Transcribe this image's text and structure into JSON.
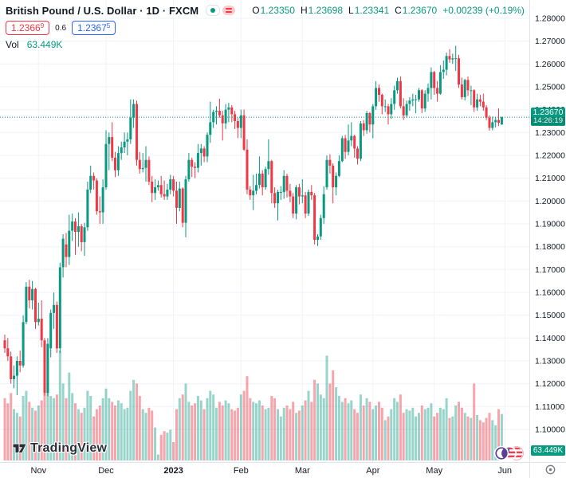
{
  "header": {
    "title": "British Pound / U.S. Dollar · 1D · FXCM",
    "ohlc": {
      "o_label": "O",
      "o": "1.23350",
      "h_label": "H",
      "h": "1.23698",
      "l_label": "L",
      "l": "1.23341",
      "c_label": "C",
      "c": "1.23670",
      "change": "+0.00239 (+0.19%)"
    },
    "bid": {
      "main": "1.2366",
      "sup": "9"
    },
    "spread": "0.6",
    "ask": {
      "main": "1.2367",
      "sup": "5"
    },
    "vol_label": "Vol",
    "vol_value": "63.449K"
  },
  "price_label": {
    "price": "1.23670",
    "time": "14:26:19"
  },
  "volume_label": "63.449K",
  "watermark": "TradingView",
  "chart_data": {
    "type": "candlestick",
    "title": "British Pound / U.S. Dollar, 1D, FXCM",
    "symbol": "GBP/USD",
    "timeframe": "1D",
    "exchange": "FXCM",
    "current_bar": {
      "open": 1.2335,
      "high": 1.23698,
      "low": 1.23341,
      "close": 1.2367,
      "change": 0.00239,
      "change_pct": 0.19,
      "volume_k": 63.449,
      "countdown": "14:26:19"
    },
    "quote": {
      "bid": 1.23669,
      "ask": 1.23675,
      "spread": 0.6
    },
    "y_axis": {
      "min": 1.1,
      "max": 1.28,
      "tick_step": 0.01,
      "ticks": [
        1.28,
        1.27,
        1.26,
        1.25,
        1.24,
        1.23,
        1.22,
        1.21,
        1.2,
        1.19,
        1.18,
        1.17,
        1.16,
        1.15,
        1.14,
        1.13,
        1.12,
        1.11,
        1.1
      ]
    },
    "x_axis": {
      "labels": [
        "Nov",
        "Dec",
        "2023",
        "Feb",
        "Mar",
        "Apr",
        "May",
        "Jun"
      ],
      "month_start_indices": [
        11,
        33,
        55,
        77,
        97,
        120,
        140,
        163
      ],
      "bold_label": "2023",
      "grid": true
    },
    "last_price": 1.2367,
    "candles": [
      [
        1.139,
        1.1415,
        1.1335,
        1.1355
      ],
      [
        1.1355,
        1.14,
        1.13,
        1.132
      ],
      [
        1.132,
        1.134,
        1.12,
        1.122
      ],
      [
        1.122,
        1.128,
        1.118,
        1.1235
      ],
      [
        1.1235,
        1.132,
        1.115,
        1.13
      ],
      [
        1.13,
        1.1345,
        1.125,
        1.128
      ],
      [
        1.128,
        1.15,
        1.127,
        1.147
      ],
      [
        1.147,
        1.1645,
        1.146,
        1.1625
      ],
      [
        1.1625,
        1.1655,
        1.153,
        1.1565
      ],
      [
        1.1565,
        1.165,
        1.1525,
        1.1615
      ],
      [
        1.1615,
        1.162,
        1.144,
        1.147
      ],
      [
        1.147,
        1.1555,
        1.1455,
        1.1485
      ],
      [
        1.1485,
        1.1565,
        1.136,
        1.139
      ],
      [
        1.139,
        1.14,
        1.1147,
        1.116
      ],
      [
        1.116,
        1.14,
        1.1145,
        1.1375
      ],
      [
        1.1355,
        1.1525,
        1.1315,
        1.151
      ],
      [
        1.151,
        1.16,
        1.144,
        1.1545
      ],
      [
        1.1545,
        1.156,
        1.1335,
        1.1355
      ],
      [
        1.1355,
        1.173,
        1.1335,
        1.171
      ],
      [
        1.171,
        1.1855,
        1.1665,
        1.1835
      ],
      [
        1.181,
        1.186,
        1.171,
        1.1755
      ],
      [
        1.1755,
        1.194,
        1.172,
        1.187
      ],
      [
        1.187,
        1.1945,
        1.1825,
        1.191
      ],
      [
        1.191,
        1.1925,
        1.1765,
        1.1865
      ],
      [
        1.1865,
        1.195,
        1.18,
        1.189
      ],
      [
        1.189,
        1.19,
        1.178,
        1.182
      ],
      [
        1.182,
        1.1905,
        1.176,
        1.1885
      ],
      [
        1.1885,
        1.2085,
        1.187,
        1.205
      ],
      [
        1.205,
        1.2155,
        1.2035,
        1.211
      ],
      [
        1.211,
        1.2125,
        1.205,
        1.209
      ],
      [
        1.209,
        1.21,
        1.194,
        1.1955
      ],
      [
        1.1955,
        1.202,
        1.19,
        1.195
      ],
      [
        1.195,
        1.2095,
        1.19,
        1.206
      ],
      [
        1.206,
        1.231,
        1.205,
        1.225
      ],
      [
        1.225,
        1.23,
        1.2135,
        1.228
      ],
      [
        1.228,
        1.2345,
        1.2175,
        1.219
      ],
      [
        1.219,
        1.2215,
        1.2105,
        1.2135
      ],
      [
        1.2135,
        1.224,
        1.211,
        1.221
      ],
      [
        1.221,
        1.226,
        1.218,
        1.2235
      ],
      [
        1.2235,
        1.23,
        1.221,
        1.226
      ],
      [
        1.226,
        1.23,
        1.22,
        1.227
      ],
      [
        1.227,
        1.2445,
        1.225,
        1.2365
      ],
      [
        1.2365,
        1.2445,
        1.232,
        1.2425
      ],
      [
        1.2425,
        1.244,
        1.2155,
        1.218
      ],
      [
        1.218,
        1.2215,
        1.212,
        1.214
      ],
      [
        1.214,
        1.221,
        1.2125,
        1.2145
      ],
      [
        1.2145,
        1.224,
        1.2085,
        1.218
      ],
      [
        1.218,
        1.2195,
        1.207,
        1.2085
      ],
      [
        1.2085,
        1.211,
        1.1995,
        1.2035
      ],
      [
        1.2035,
        1.2095,
        1.2005,
        1.206
      ],
      [
        1.206,
        1.209,
        1.2045,
        1.207
      ],
      [
        1.207,
        1.211,
        1.2015,
        1.203
      ],
      [
        1.203,
        1.209,
        1.2005,
        1.202
      ],
      [
        1.202,
        1.2075,
        1.2005,
        1.205
      ],
      [
        1.205,
        1.2115,
        1.203,
        1.2095
      ],
      [
        1.2095,
        1.211,
        1.202,
        1.2045
      ],
      [
        1.2045,
        1.2085,
        1.19,
        1.197
      ],
      [
        1.197,
        1.2085,
        1.1955,
        1.2055
      ],
      [
        1.2055,
        1.206,
        1.1885,
        1.1905
      ],
      [
        1.1905,
        1.211,
        1.1841,
        1.2095
      ],
      [
        1.2095,
        1.221,
        1.2085,
        1.218
      ],
      [
        1.218,
        1.219,
        1.2105,
        1.215
      ],
      [
        1.215,
        1.217,
        1.21,
        1.2145
      ],
      [
        1.2145,
        1.225,
        1.2125,
        1.221
      ],
      [
        1.221,
        1.225,
        1.2155,
        1.223
      ],
      [
        1.223,
        1.224,
        1.217,
        1.2195
      ],
      [
        1.2195,
        1.23,
        1.217,
        1.229
      ],
      [
        1.229,
        1.2435,
        1.2255,
        1.2345
      ],
      [
        1.2345,
        1.24,
        1.232,
        1.239
      ],
      [
        1.239,
        1.2415,
        1.2335,
        1.2395
      ],
      [
        1.2395,
        1.2448,
        1.2365,
        1.2375
      ],
      [
        1.2375,
        1.2395,
        1.2265,
        1.234
      ],
      [
        1.234,
        1.2425,
        1.2315,
        1.24
      ],
      [
        1.24,
        1.243,
        1.2345,
        1.241
      ],
      [
        1.241,
        1.242,
        1.2345,
        1.238
      ],
      [
        1.238,
        1.2395,
        1.2315,
        1.235
      ],
      [
        1.235,
        1.2365,
        1.2275,
        1.232
      ],
      [
        1.232,
        1.24,
        1.2275,
        1.2375
      ],
      [
        1.2375,
        1.2401,
        1.222,
        1.2225
      ],
      [
        1.2225,
        1.227,
        1.203,
        1.205
      ],
      [
        1.205,
        1.2065,
        1.2005,
        1.2025
      ],
      [
        1.2025,
        1.2115,
        1.196,
        1.2045
      ],
      [
        1.2045,
        1.212,
        1.203,
        1.207
      ],
      [
        1.207,
        1.2195,
        1.2055,
        1.212
      ],
      [
        1.212,
        1.2135,
        1.2025,
        1.206
      ],
      [
        1.206,
        1.215,
        1.205,
        1.214
      ],
      [
        1.214,
        1.227,
        1.2115,
        1.2175
      ],
      [
        1.2175,
        1.218,
        1.199,
        1.2035
      ],
      [
        1.2035,
        1.206,
        1.197,
        1.199
      ],
      [
        1.199,
        1.205,
        1.1915,
        1.204
      ],
      [
        1.204,
        1.2065,
        1.2005,
        1.204
      ],
      [
        1.204,
        1.2135,
        1.201,
        1.211
      ],
      [
        1.211,
        1.212,
        1.2015,
        1.2045
      ],
      [
        1.2045,
        1.2075,
        1.1995,
        1.202
      ],
      [
        1.202,
        1.2035,
        1.1925,
        1.1945
      ],
      [
        1.1945,
        1.207,
        1.192,
        1.206
      ],
      [
        1.206,
        1.2075,
        1.1985,
        1.202
      ],
      [
        1.202,
        1.2095,
        1.199,
        1.2025
      ],
      [
        1.2025,
        1.204,
        1.1925,
        1.1945
      ],
      [
        1.1945,
        1.205,
        1.1935,
        1.204
      ],
      [
        1.204,
        1.207,
        1.2005,
        1.2025
      ],
      [
        1.2025,
        1.2035,
        1.181,
        1.183
      ],
      [
        1.183,
        1.1855,
        1.1803,
        1.1845
      ],
      [
        1.1845,
        1.194,
        1.183,
        1.1925
      ],
      [
        1.1925,
        1.2065,
        1.19,
        1.203
      ],
      [
        1.206,
        1.22,
        1.205,
        1.218
      ],
      [
        1.218,
        1.2205,
        1.212,
        1.2155
      ],
      [
        1.2155,
        1.2165,
        1.199,
        1.206
      ],
      [
        1.206,
        1.2125,
        1.2025,
        1.211
      ],
      [
        1.211,
        1.22,
        1.2105,
        1.2175
      ],
      [
        1.2175,
        1.2285,
        1.217,
        1.2275
      ],
      [
        1.2275,
        1.229,
        1.2185,
        1.2215
      ],
      [
        1.2215,
        1.2335,
        1.22,
        1.2265
      ],
      [
        1.2265,
        1.2345,
        1.224,
        1.2285
      ],
      [
        1.2285,
        1.229,
        1.219,
        1.223
      ],
      [
        1.223,
        1.224,
        1.216,
        1.2185
      ],
      [
        1.2185,
        1.235,
        1.2175,
        1.234
      ],
      [
        1.234,
        1.2355,
        1.2285,
        1.231
      ],
      [
        1.231,
        1.2395,
        1.2295,
        1.2385
      ],
      [
        1.2385,
        1.239,
        1.23,
        1.2335
      ],
      [
        1.2335,
        1.2425,
        1.2275,
        1.2415
      ],
      [
        1.2415,
        1.2525,
        1.24,
        1.2495
      ],
      [
        1.2495,
        1.251,
        1.2435,
        1.2465
      ],
      [
        1.2465,
        1.247,
        1.238,
        1.2415
      ],
      [
        1.2415,
        1.2445,
        1.239,
        1.2415
      ],
      [
        1.2415,
        1.2425,
        1.2335,
        1.238
      ],
      [
        1.238,
        1.245,
        1.236,
        1.2425
      ],
      [
        1.2425,
        1.2505,
        1.24,
        1.2485
      ],
      [
        1.2485,
        1.254,
        1.247,
        1.2525
      ],
      [
        1.2525,
        1.2546,
        1.2405,
        1.2415
      ],
      [
        1.2415,
        1.245,
        1.2355,
        1.2375
      ],
      [
        1.2375,
        1.244,
        1.2365,
        1.2425
      ],
      [
        1.2425,
        1.2455,
        1.2395,
        1.244
      ],
      [
        1.244,
        1.247,
        1.2415,
        1.2445
      ],
      [
        1.2445,
        1.2465,
        1.2385,
        1.2445
      ],
      [
        1.2445,
        1.2495,
        1.2435,
        1.2485
      ],
      [
        1.2485,
        1.249,
        1.2385,
        1.2405
      ],
      [
        1.2405,
        1.2485,
        1.239,
        1.247
      ],
      [
        1.247,
        1.2515,
        1.2435,
        1.2495
      ],
      [
        1.2495,
        1.2585,
        1.2445,
        1.2565
      ],
      [
        1.2565,
        1.257,
        1.2465,
        1.2495
      ],
      [
        1.2495,
        1.2525,
        1.2435,
        1.247
      ],
      [
        1.247,
        1.2595,
        1.2465,
        1.2565
      ],
      [
        1.2565,
        1.2615,
        1.2535,
        1.2575
      ],
      [
        1.2575,
        1.265,
        1.255,
        1.2635
      ],
      [
        1.2635,
        1.2665,
        1.2605,
        1.262
      ],
      [
        1.262,
        1.2645,
        1.26,
        1.2625
      ],
      [
        1.2625,
        1.268,
        1.257,
        1.2625
      ],
      [
        1.2625,
        1.264,
        1.2495,
        1.251
      ],
      [
        1.251,
        1.254,
        1.2445,
        1.2455
      ],
      [
        1.2455,
        1.2535,
        1.244,
        1.253
      ],
      [
        1.253,
        1.2545,
        1.246,
        1.2485
      ],
      [
        1.2485,
        1.2505,
        1.242,
        1.2485
      ],
      [
        1.2485,
        1.249,
        1.239,
        1.241
      ],
      [
        1.241,
        1.247,
        1.2395,
        1.2445
      ],
      [
        1.2445,
        1.2465,
        1.2415,
        1.2435
      ],
      [
        1.2435,
        1.247,
        1.2395,
        1.241
      ],
      [
        1.241,
        1.242,
        1.2355,
        1.2365
      ],
      [
        1.2365,
        1.2375,
        1.2308,
        1.232
      ],
      [
        1.232,
        1.237,
        1.231,
        1.2345
      ],
      [
        1.2345,
        1.2368,
        1.2322,
        1.2355
      ],
      [
        1.2355,
        1.2405,
        1.2328,
        1.2343
      ],
      [
        1.2335,
        1.237,
        1.2334,
        1.2367
      ]
    ],
    "volumes_k": [
      85,
      78,
      92,
      70,
      65,
      60,
      88,
      95,
      80,
      72,
      68,
      75,
      82,
      110,
      95,
      88,
      85,
      90,
      150,
      105,
      85,
      120,
      92,
      78,
      70,
      65,
      72,
      95,
      88,
      60,
      70,
      75,
      85,
      98,
      85,
      80,
      75,
      82,
      78,
      70,
      72,
      95,
      110,
      105,
      88,
      70,
      65,
      72,
      68,
      45,
      8,
      35,
      40,
      38,
      42,
      25,
      70,
      85,
      90,
      105,
      80,
      75,
      78,
      88,
      82,
      70,
      85,
      95,
      90,
      72,
      80,
      75,
      82,
      78,
      70,
      68,
      72,
      90,
      95,
      115,
      85,
      80,
      78,
      82,
      75,
      70,
      72,
      88,
      85,
      70,
      60,
      72,
      75,
      70,
      80,
      65,
      68,
      75,
      82,
      95,
      80,
      110,
      105,
      90,
      85,
      143,
      105,
      123,
      100,
      88,
      80,
      85,
      78,
      82,
      70,
      65,
      90,
      75,
      85,
      80,
      70,
      75,
      80,
      72,
      55,
      60,
      70,
      85,
      80,
      90,
      65,
      70,
      68,
      72,
      60,
      65,
      75,
      70,
      72,
      78,
      60,
      65,
      72,
      70,
      85,
      58,
      60,
      75,
      80,
      72,
      65,
      60,
      58,
      105,
      62,
      55,
      52,
      58,
      65,
      55,
      48,
      70,
      63.449
    ],
    "colors": {
      "up": "#089981",
      "down": "#f23645",
      "vol_up": "#089981",
      "vol_down": "#f23645",
      "vol_up_opacity": 0.42,
      "vol_down_opacity": 0.45,
      "grid": "#f0f3fa",
      "axis_text": "#131722",
      "separator": "#e0e3eb",
      "last_price_line": "#089981",
      "label_bg": "#089981",
      "bid": "#f23645",
      "ask": "#2962ff"
    }
  }
}
